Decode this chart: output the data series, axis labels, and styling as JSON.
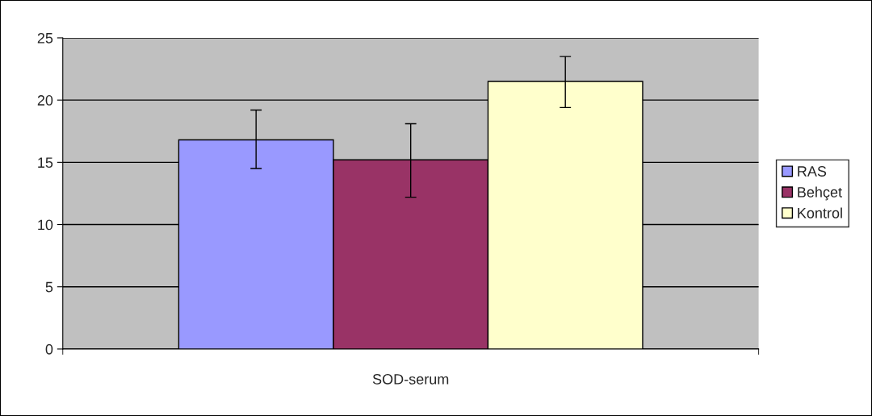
{
  "chart_data": {
    "type": "bar",
    "categories": [
      "SOD-serum"
    ],
    "series": [
      {
        "name": "RAS",
        "color": "#9999ff",
        "values": [
          16.8
        ],
        "errors": [
          [
            14.5,
            19.2
          ]
        ]
      },
      {
        "name": "Behçet",
        "color": "#993366",
        "values": [
          15.2
        ],
        "errors": [
          [
            12.2,
            18.1
          ]
        ]
      },
      {
        "name": "Kontrol",
        "color": "#ffffcc",
        "values": [
          21.5
        ],
        "errors": [
          [
            19.4,
            23.5
          ]
        ]
      }
    ],
    "ylim": [
      0,
      25
    ],
    "yticks": [
      0,
      5,
      10,
      15,
      20,
      25
    ],
    "grid": "y",
    "legend": "right"
  }
}
